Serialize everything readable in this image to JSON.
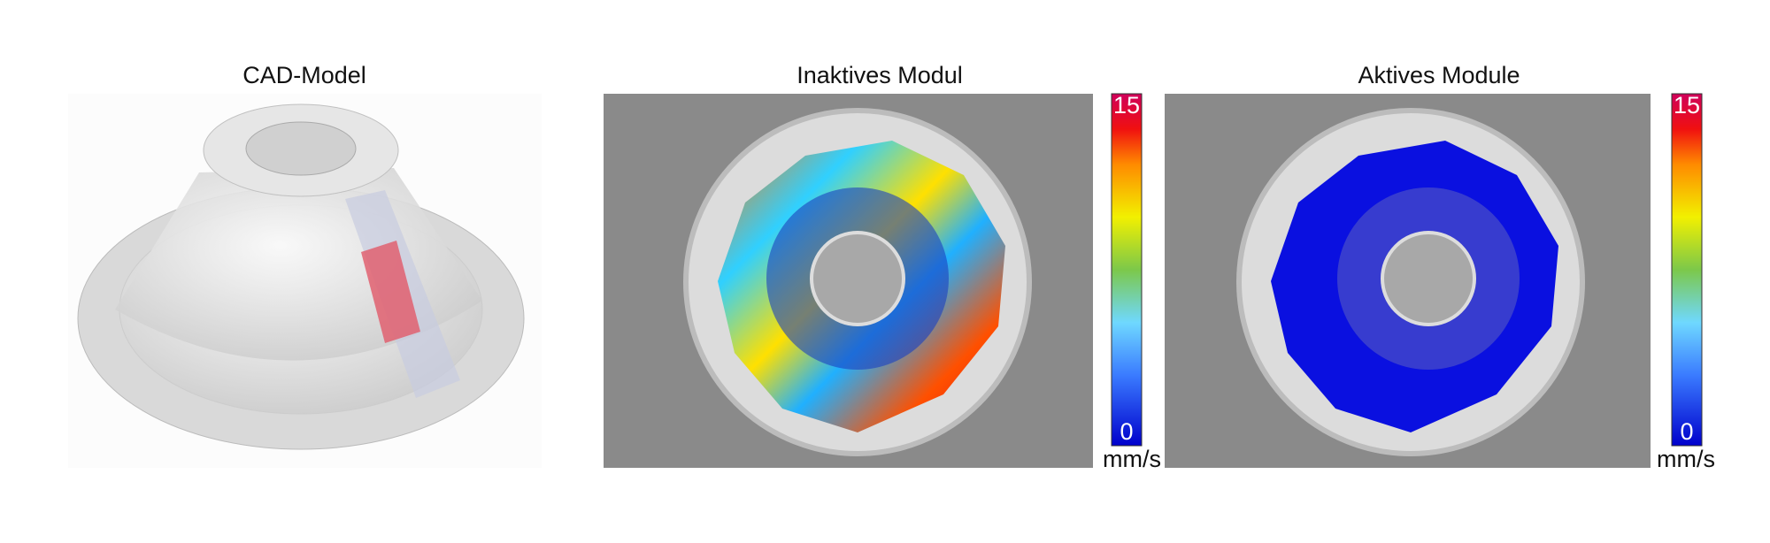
{
  "panels": [
    {
      "title": "CAD-Model"
    },
    {
      "title": "Inaktives Modul",
      "colorbar": {
        "max": 15,
        "min": 0,
        "unit": "mm/s"
      }
    },
    {
      "title": "Aktives Module",
      "colorbar": {
        "max": 15,
        "min": 0,
        "unit": "mm/s"
      }
    }
  ]
}
